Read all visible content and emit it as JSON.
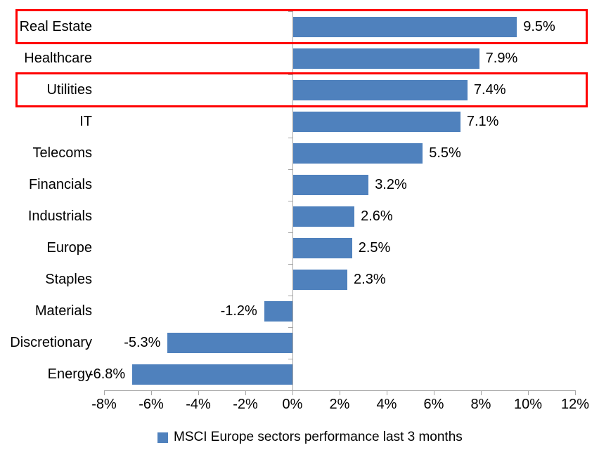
{
  "chart_data": {
    "type": "bar",
    "orientation": "horizontal",
    "title": "",
    "categories": [
      "Real Estate",
      "Healthcare",
      "Utilities",
      "IT",
      "Telecoms",
      "Financials",
      "Industrials",
      "Europe",
      "Staples",
      "Materials",
      "Discretionary",
      "Energy"
    ],
    "values": [
      9.5,
      7.9,
      7.4,
      7.1,
      5.5,
      3.2,
      2.6,
      2.5,
      2.3,
      -1.2,
      -5.3,
      -6.8
    ],
    "data_labels": [
      "9.5%",
      "7.9%",
      "7.4%",
      "7.1%",
      "5.5%",
      "3.2%",
      "2.6%",
      "2.5%",
      "2.3%",
      "-1.2%",
      "-5.3%",
      "-6.8%"
    ],
    "x_ticks": [
      -8,
      -6,
      -4,
      -2,
      0,
      2,
      4,
      6,
      8,
      10,
      12
    ],
    "x_tick_labels": [
      "-8%",
      "-6%",
      "-4%",
      "-2%",
      "0%",
      "2%",
      "4%",
      "6%",
      "8%",
      "10%",
      "12%"
    ],
    "xlim": [
      -8,
      12
    ],
    "grid": false,
    "legend": "MSCI Europe sectors performance last 3 months",
    "legend_position": "bottom",
    "highlighted_categories": [
      "Real Estate",
      "Utilities"
    ],
    "colors": {
      "bar": "#4F81BD",
      "axis": "#A6A6A6",
      "highlight_box": "#FF0000",
      "text": "#000000",
      "background": "#FFFFFF"
    }
  }
}
